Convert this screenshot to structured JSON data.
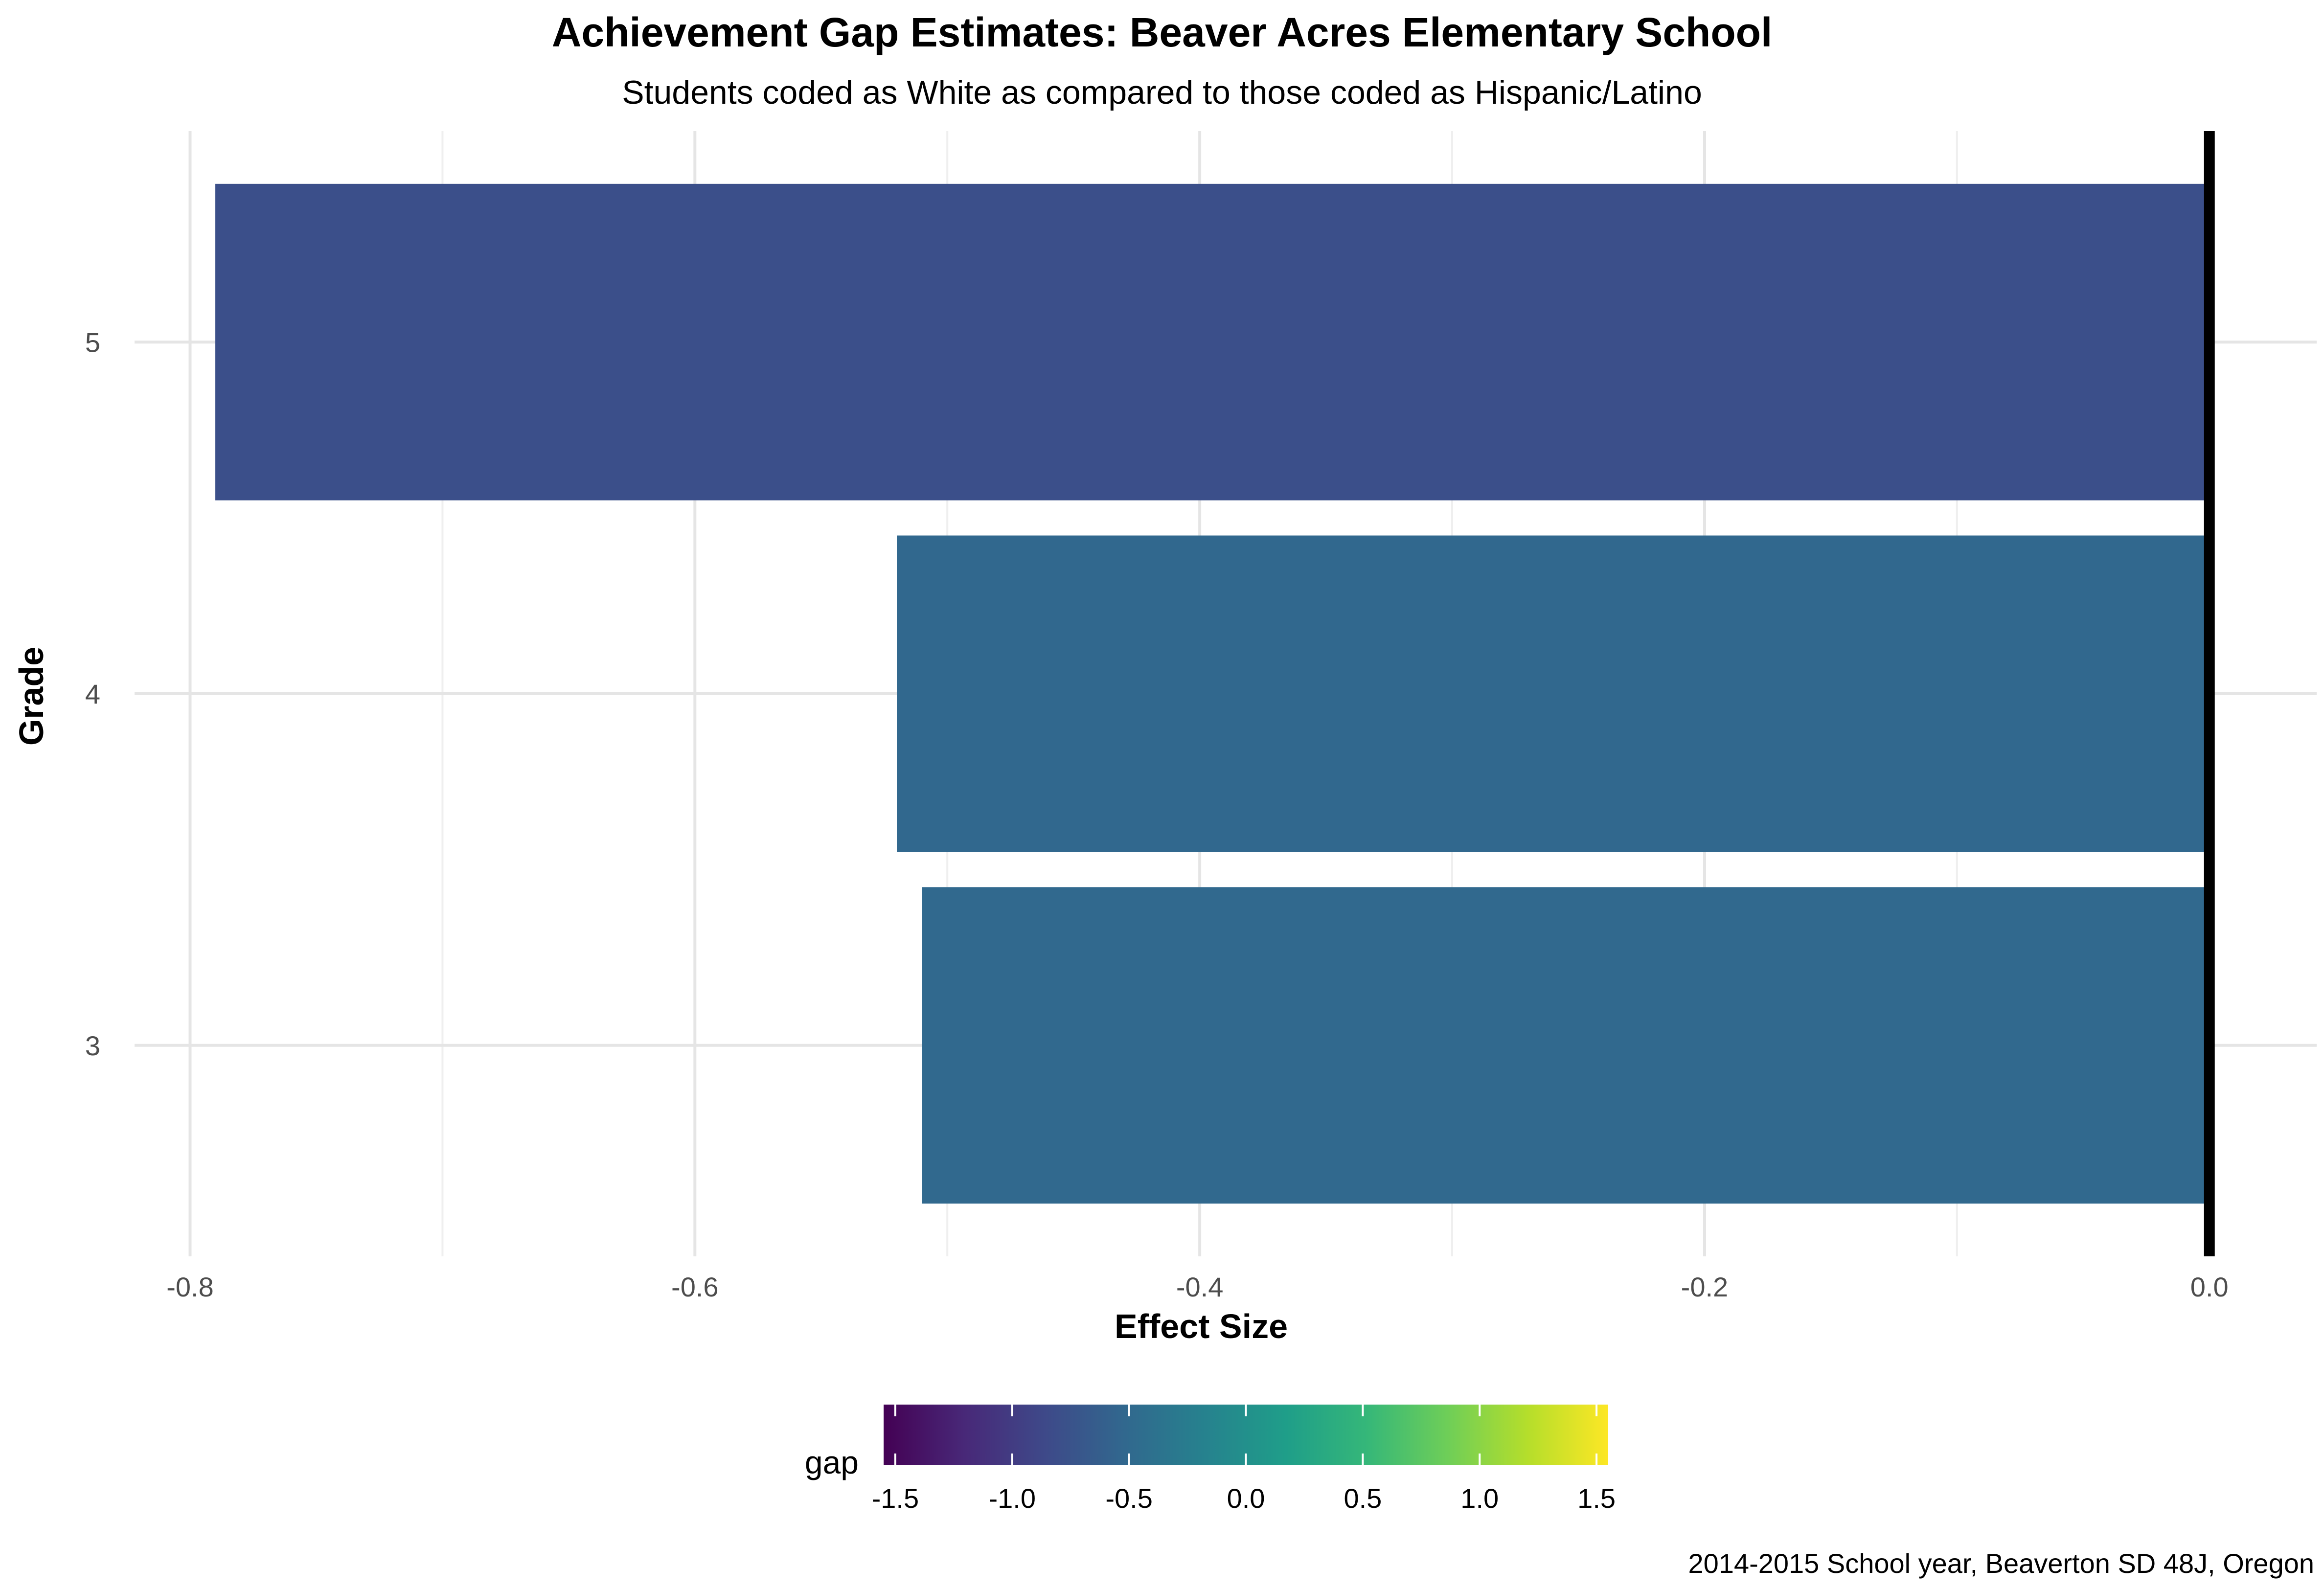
{
  "chart_data": {
    "type": "bar",
    "orientation": "horizontal",
    "title": "Achievement Gap Estimates: Beaver Acres Elementary School",
    "subtitle": "Students coded as White as compared to those coded as Hispanic/Latino",
    "xlabel": "Effect Size",
    "ylabel": "Grade",
    "categories": [
      "3",
      "4",
      "5"
    ],
    "values": [
      -0.51,
      -0.52,
      -0.79
    ],
    "xlim": [
      -0.8,
      0.0
    ],
    "x_ticks": [
      "-0.8",
      "-0.6",
      "-0.4",
      "-0.2",
      "0.0"
    ],
    "x_tick_values": [
      -0.8,
      -0.6,
      -0.4,
      -0.2,
      0.0
    ],
    "reference_line": 0.0,
    "grid": true,
    "legend": {
      "title": "gap",
      "type": "colorbar",
      "placement": "bottom",
      "range": [
        -1.55,
        1.55
      ],
      "ticks": [
        "-1.5",
        "-1.0",
        "-0.5",
        "0.0",
        "0.5",
        "1.0",
        "1.5"
      ],
      "tick_values": [
        -1.5,
        -1.0,
        -0.5,
        0.0,
        0.5,
        1.0,
        1.5
      ],
      "colors": [
        "#440154",
        "#482878",
        "#3e4989",
        "#31688e",
        "#26828e",
        "#1f9e89",
        "#35b779",
        "#6ece58",
        "#b5de2b",
        "#fde725"
      ]
    },
    "caption": "2014-2015 School year, Beaverton SD 48J, Oregon"
  }
}
